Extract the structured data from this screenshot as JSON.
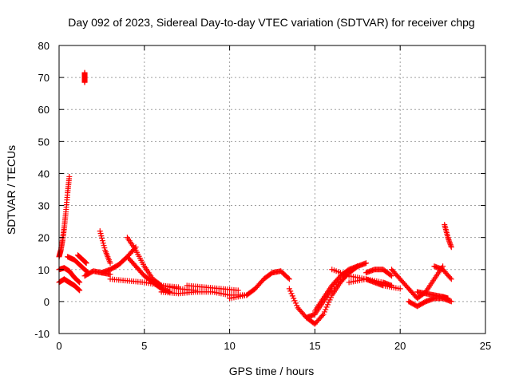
{
  "chart_data": {
    "type": "scatter",
    "title": "Day 092 of 2023, Sidereal Day-to-day VTEC variation (SDTVAR) for receiver chpg",
    "xlabel": "GPS time / hours",
    "ylabel": "SDTVAR / TECUs",
    "xlim": [
      0,
      25
    ],
    "ylim": [
      -10,
      80
    ],
    "xticks": [
      "0",
      "5",
      "10",
      "15",
      "20",
      "25"
    ],
    "yticks": [
      "-10",
      "0",
      "10",
      "20",
      "30",
      "40",
      "50",
      "60",
      "70",
      "80"
    ],
    "grid": true,
    "marker": "+",
    "color": "#ff0000",
    "series": [
      {
        "name": "s1",
        "x": [
          0.0,
          0.1,
          0.2,
          0.3,
          0.4,
          0.5,
          0.6
        ],
        "y": [
          14,
          16,
          19,
          23,
          28,
          34,
          39
        ]
      },
      {
        "name": "s2",
        "x": [
          0.0,
          0.3,
          0.6,
          0.9,
          1.2
        ],
        "y": [
          10,
          10.5,
          9.5,
          7.5,
          6
        ]
      },
      {
        "name": "s3",
        "x": [
          0.0,
          0.3,
          0.6,
          0.9,
          1.2
        ],
        "y": [
          6,
          7,
          6,
          5,
          3.5
        ]
      },
      {
        "name": "s4",
        "x": [
          0.5,
          0.9,
          1.3,
          1.7
        ],
        "y": [
          14,
          13,
          11,
          9
        ]
      },
      {
        "name": "s5",
        "x": [
          1.5,
          1.5,
          1.5
        ],
        "y": [
          71.5,
          70,
          68.5
        ]
      },
      {
        "name": "s6",
        "x": [
          1.1,
          1.4,
          1.6
        ],
        "y": [
          14.5,
          13,
          12
        ]
      },
      {
        "name": "s7",
        "x": [
          1.5,
          2.0,
          2.5,
          3.0
        ],
        "y": [
          8,
          9.5,
          9,
          8.5
        ]
      },
      {
        "name": "s8",
        "x": [
          2.4,
          2.7,
          3.0
        ],
        "y": [
          22,
          16,
          12
        ]
      },
      {
        "name": "s9",
        "x": [
          2.5,
          3.0,
          3.5,
          4.0,
          4.5
        ],
        "y": [
          9,
          10,
          11.5,
          14,
          17
        ]
      },
      {
        "name": "s10",
        "x": [
          3.0,
          4.0,
          5.0,
          6.0,
          7.0
        ],
        "y": [
          7,
          6.5,
          6,
          5,
          4.5
        ]
      },
      {
        "name": "s11",
        "x": [
          4.0,
          4.5,
          5.0,
          5.5,
          6.0,
          7.0,
          8.0
        ],
        "y": [
          20,
          16,
          11,
          7,
          5,
          4,
          3.5
        ]
      },
      {
        "name": "s12",
        "x": [
          4.0,
          4.5,
          5.0,
          5.5,
          6.0,
          6.5
        ],
        "y": [
          14,
          11,
          8,
          6,
          4,
          3
        ]
      },
      {
        "name": "s13",
        "x": [
          6.0,
          7.0,
          8.0,
          9.0,
          10.0,
          11.0
        ],
        "y": [
          3,
          2.5,
          3,
          3,
          2,
          2
        ]
      },
      {
        "name": "s14",
        "x": [
          7.5,
          8.5,
          9.5,
          10.5
        ],
        "y": [
          5,
          4.5,
          4,
          3.5
        ]
      },
      {
        "name": "s15",
        "x": [
          10.0,
          11.0,
          11.5,
          12.0,
          12.5,
          13.0,
          13.5
        ],
        "y": [
          1,
          2,
          4,
          7,
          9,
          9.5,
          7
        ]
      },
      {
        "name": "s16",
        "x": [
          13.5,
          14.0,
          14.5,
          15.0,
          15.5,
          16.0,
          17.0,
          17.5
        ],
        "y": [
          4,
          -2,
          -5,
          -4,
          0,
          4,
          9,
          11
        ]
      },
      {
        "name": "s17",
        "x": [
          14.5,
          15.0,
          15.5,
          16.0,
          16.5,
          17.0,
          17.5,
          18.0
        ],
        "y": [
          -5,
          -7,
          -4,
          2,
          6,
          9,
          11,
          12
        ]
      },
      {
        "name": "s18",
        "x": [
          15.0,
          15.5,
          16.0,
          16.5,
          17.0,
          17.5
        ],
        "y": [
          -3,
          1,
          5,
          8,
          10,
          11
        ]
      },
      {
        "name": "s19",
        "x": [
          16.0,
          17.0,
          18.0,
          18.5,
          19.0,
          20.0
        ],
        "y": [
          10,
          8,
          7,
          6,
          5,
          4
        ]
      },
      {
        "name": "s20",
        "x": [
          17.0,
          18.0,
          19.0,
          19.5
        ],
        "y": [
          6,
          7,
          6,
          5
        ]
      },
      {
        "name": "s21",
        "x": [
          18.0,
          18.5,
          19.0,
          19.5
        ],
        "y": [
          9,
          10,
          10,
          8
        ]
      },
      {
        "name": "s22",
        "x": [
          19.5,
          20.0,
          20.5,
          21.0,
          21.5,
          22.0,
          22.5
        ],
        "y": [
          10,
          7,
          4,
          1,
          3,
          7,
          11
        ]
      },
      {
        "name": "s23",
        "x": [
          20.5,
          21.0,
          21.5,
          22.0,
          22.5,
          23.0
        ],
        "y": [
          0,
          -1.5,
          0,
          1,
          1,
          0
        ]
      },
      {
        "name": "s24",
        "x": [
          21.0,
          21.5,
          22.0,
          22.5,
          22.8
        ],
        "y": [
          3,
          2.5,
          2,
          1.5,
          1
        ]
      },
      {
        "name": "s25",
        "x": [
          22.0,
          22.5,
          23.0
        ],
        "y": [
          11,
          10,
          7
        ]
      },
      {
        "name": "s26",
        "x": [
          22.6,
          22.8,
          23.0
        ],
        "y": [
          24,
          20,
          17
        ]
      }
    ]
  }
}
